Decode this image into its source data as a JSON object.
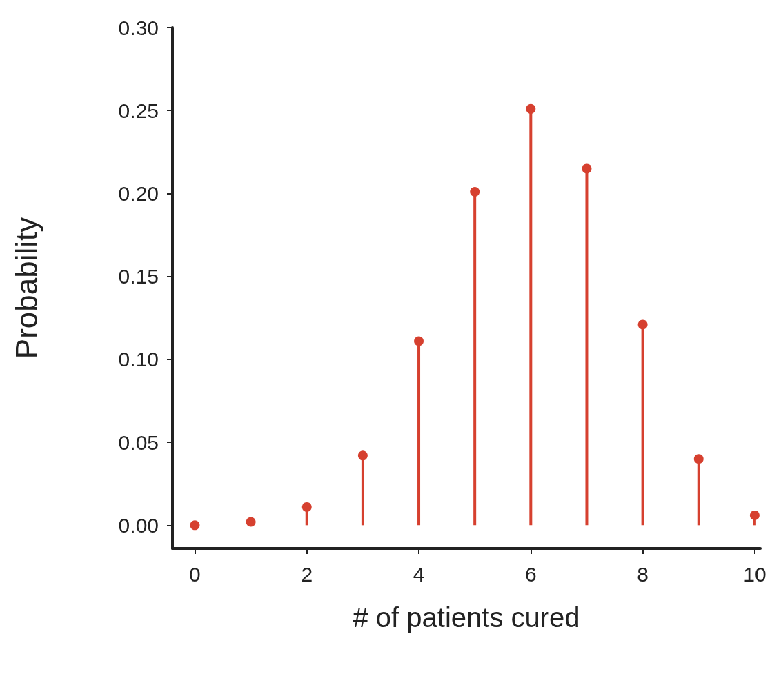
{
  "chart_data": {
    "type": "lollipop",
    "xlabel": "# of patients cured",
    "ylabel": "Probability",
    "x": [
      0,
      1,
      2,
      3,
      4,
      5,
      6,
      7,
      8,
      9,
      10
    ],
    "values": [
      0.0,
      0.002,
      0.011,
      0.042,
      0.111,
      0.201,
      0.251,
      0.215,
      0.121,
      0.04,
      0.006
    ],
    "color": "#d6402f",
    "marker": "circle",
    "xlim": [
      -0.4,
      10.1
    ],
    "xticks": [
      0,
      2,
      4,
      6,
      8,
      10
    ],
    "ylim": [
      -0.014,
      0.3
    ],
    "yticks": [
      {
        "value": 0,
        "label": "0.00"
      },
      {
        "value": 0.05,
        "label": "0.05"
      },
      {
        "value": 0.1,
        "label": "0.10"
      },
      {
        "value": 0.15,
        "label": "0.15"
      },
      {
        "value": 0.2,
        "label": "0.20"
      },
      {
        "value": 0.25,
        "label": "0.25"
      },
      {
        "value": 0.3,
        "label": "0.30"
      }
    ],
    "grid": false
  }
}
